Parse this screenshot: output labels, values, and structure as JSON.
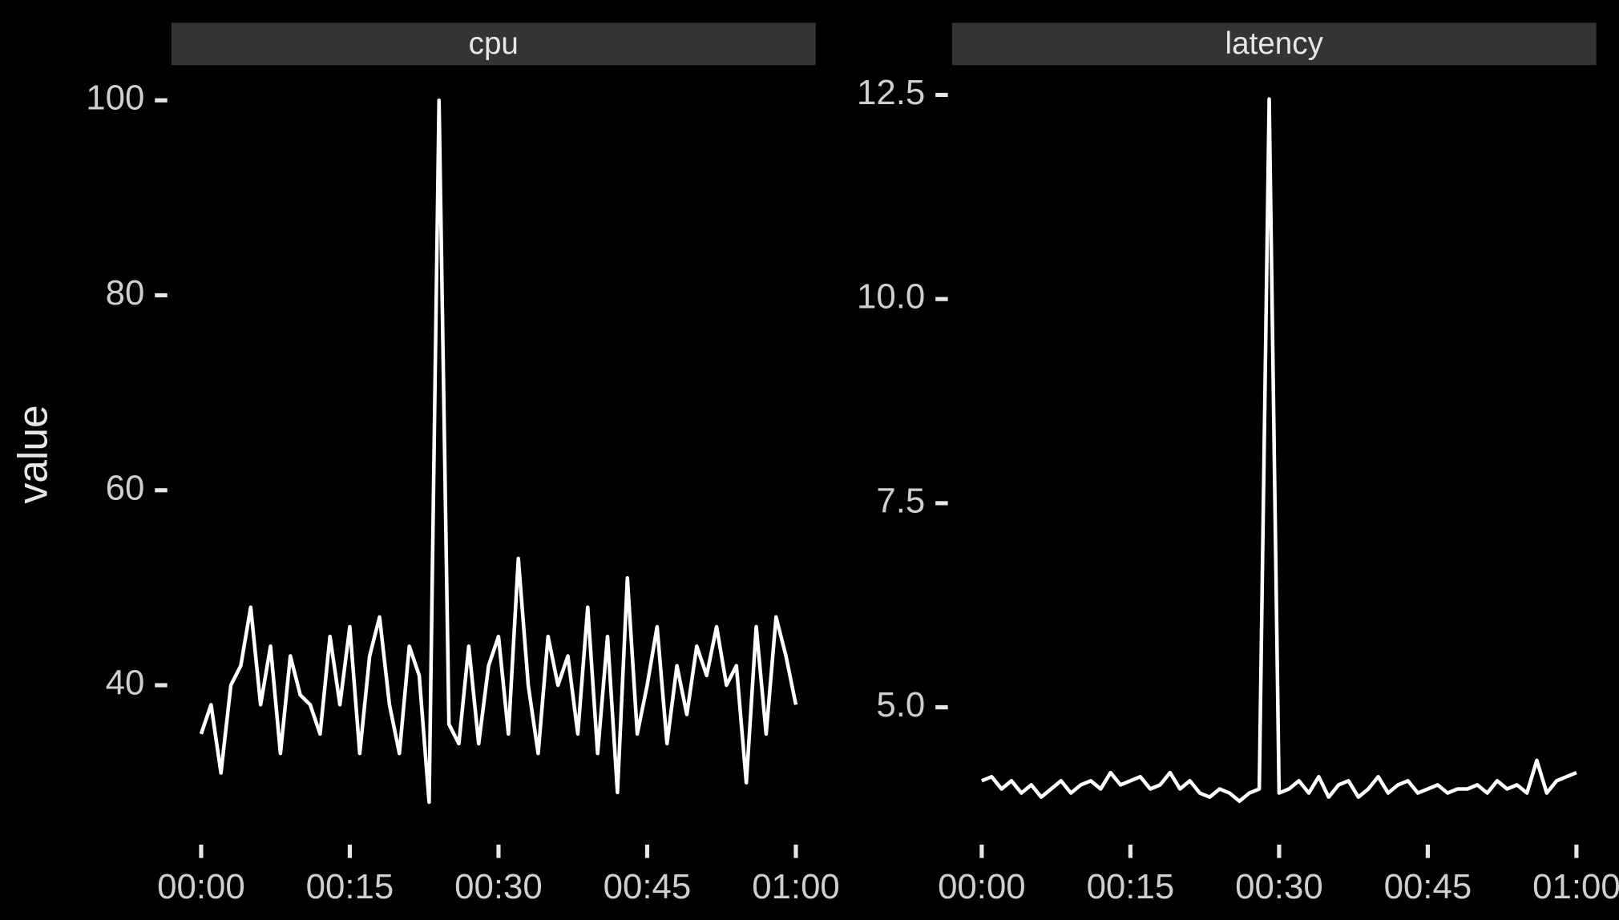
{
  "chart_data": [
    {
      "type": "line",
      "title": "cpu",
      "ylabel": "value",
      "x": [
        0,
        1,
        2,
        3,
        4,
        5,
        6,
        7,
        8,
        9,
        10,
        11,
        12,
        13,
        14,
        15,
        16,
        17,
        18,
        19,
        20,
        21,
        22,
        23,
        24,
        25,
        26,
        27,
        28,
        29,
        30,
        31,
        32,
        33,
        34,
        35,
        36,
        37,
        38,
        39,
        40,
        41,
        42,
        43,
        44,
        45,
        46,
        47,
        48,
        49,
        50,
        51,
        52,
        53,
        54,
        55,
        56,
        57,
        58,
        59,
        60
      ],
      "xlim": [
        -3,
        62
      ],
      "xticks": [
        {
          "value": 0,
          "label": "00:00"
        },
        {
          "value": 15,
          "label": "00:15"
        },
        {
          "value": 30,
          "label": "00:30"
        },
        {
          "value": 45,
          "label": "00:45"
        },
        {
          "value": 60,
          "label": "01:00"
        }
      ],
      "ylim": [
        24.5,
        103.4
      ],
      "yticks": [
        40,
        60,
        80,
        100
      ],
      "series": [
        {
          "color": "#ffffff",
          "values": [
            35,
            38,
            31,
            40,
            42,
            48,
            38,
            44,
            33,
            43,
            39,
            38,
            35,
            45,
            38,
            46,
            33,
            43,
            47,
            38,
            33,
            44,
            41,
            28,
            100,
            36,
            34,
            44,
            34,
            42,
            45,
            35,
            53,
            40,
            33,
            45,
            40,
            43,
            35,
            48,
            33,
            45,
            29,
            51,
            35,
            40,
            46,
            34,
            42,
            37,
            44,
            41,
            46,
            40,
            42,
            30,
            46,
            35,
            47,
            43,
            38
          ]
        }
      ]
    },
    {
      "type": "line",
      "title": "latency",
      "x": [
        0,
        1,
        2,
        3,
        4,
        5,
        6,
        7,
        8,
        9,
        10,
        11,
        12,
        13,
        14,
        15,
        16,
        17,
        18,
        19,
        20,
        21,
        22,
        23,
        24,
        25,
        26,
        27,
        28,
        29,
        30,
        31,
        32,
        33,
        34,
        35,
        36,
        37,
        38,
        39,
        40,
        41,
        42,
        43,
        44,
        45,
        46,
        47,
        48,
        49,
        50,
        51,
        52,
        53,
        54,
        55,
        56,
        57,
        58,
        59,
        60
      ],
      "xlim": [
        -3,
        62
      ],
      "xticks": [
        {
          "value": 0,
          "label": "00:00"
        },
        {
          "value": 15,
          "label": "00:15"
        },
        {
          "value": 30,
          "label": "00:30"
        },
        {
          "value": 45,
          "label": "00:45"
        },
        {
          "value": 60,
          "label": "01:00"
        }
      ],
      "ylim": [
        3.42,
        12.84
      ],
      "yticks": [
        {
          "value": 5,
          "label": "5.0"
        },
        {
          "value": 7.5,
          "label": "7.5"
        },
        {
          "value": 10,
          "label": "10.0"
        },
        {
          "value": 12.5,
          "label": "12.5"
        }
      ],
      "series": [
        {
          "color": "#ffffff",
          "values": [
            4.1,
            4.15,
            4.0,
            4.1,
            3.95,
            4.05,
            3.9,
            4.0,
            4.1,
            3.95,
            4.05,
            4.1,
            4.0,
            4.2,
            4.05,
            4.1,
            4.15,
            4.0,
            4.05,
            4.2,
            4.0,
            4.1,
            3.95,
            3.9,
            4.0,
            3.95,
            3.85,
            3.95,
            4.0,
            12.45,
            3.95,
            4.0,
            4.1,
            3.95,
            4.15,
            3.9,
            4.05,
            4.1,
            3.9,
            4.0,
            4.15,
            3.95,
            4.05,
            4.1,
            3.95,
            4.0,
            4.05,
            3.95,
            4.0,
            4.0,
            4.05,
            3.95,
            4.1,
            4.0,
            4.05,
            3.95,
            4.35,
            3.95,
            4.1,
            4.15,
            4.2
          ]
        }
      ]
    }
  ]
}
